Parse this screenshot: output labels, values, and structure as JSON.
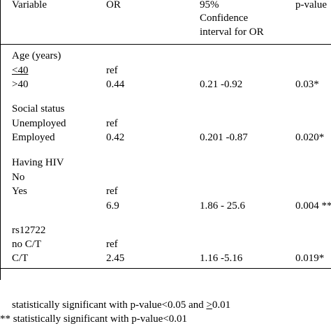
{
  "header": {
    "variable": "Variable",
    "or": "OR",
    "ci_line1": "95%",
    "ci_line2": "Confidence",
    "ci_line3": "interval for OR",
    "pvalue": "p-value"
  },
  "rows": [
    {
      "variable": "Age (years)",
      "or": "",
      "ci": "",
      "p": ""
    },
    {
      "variable": "<40",
      "or": "ref",
      "ci": "",
      "p": ""
    },
    {
      "variable": ">40",
      "or": "0.44",
      "ci": "0.21 -0.92",
      "p": "0.03*"
    },
    {
      "variable": "Social status",
      "or": "",
      "ci": "",
      "p": ""
    },
    {
      "variable": "Unemployed",
      "or": "ref",
      "ci": "",
      "p": ""
    },
    {
      "variable": "Employed",
      "or": "0.42",
      "ci": "0.201 -0.87",
      "p": "0.020*"
    },
    {
      "variable": "Having HIV",
      "or": "",
      "ci": "",
      "p": ""
    },
    {
      "variable": "No",
      "or": "",
      "ci": "",
      "p": ""
    },
    {
      "variable": "Yes",
      "or": "ref",
      "ci": "",
      "p": ""
    },
    {
      "variable": "",
      "or": "6.9",
      "ci": "1.86 - 25.6",
      "p": "0.004 **"
    },
    {
      "variable": "rs12722",
      "or": "",
      "ci": "",
      "p": ""
    },
    {
      "variable": "no C/T",
      "or": "ref",
      "ci": "",
      "p": ""
    },
    {
      "variable": "C/T",
      "or": "2.45",
      "ci": "1.16 -5.16",
      "p": "0.019*"
    }
  ],
  "footnotes": {
    "note1_prefix": "statistically significant with p-value<0.05 and ",
    "note1_ge": ">",
    "note1_suffix": "0.01",
    "note2": "** statistically significant with p-value<0.01"
  }
}
